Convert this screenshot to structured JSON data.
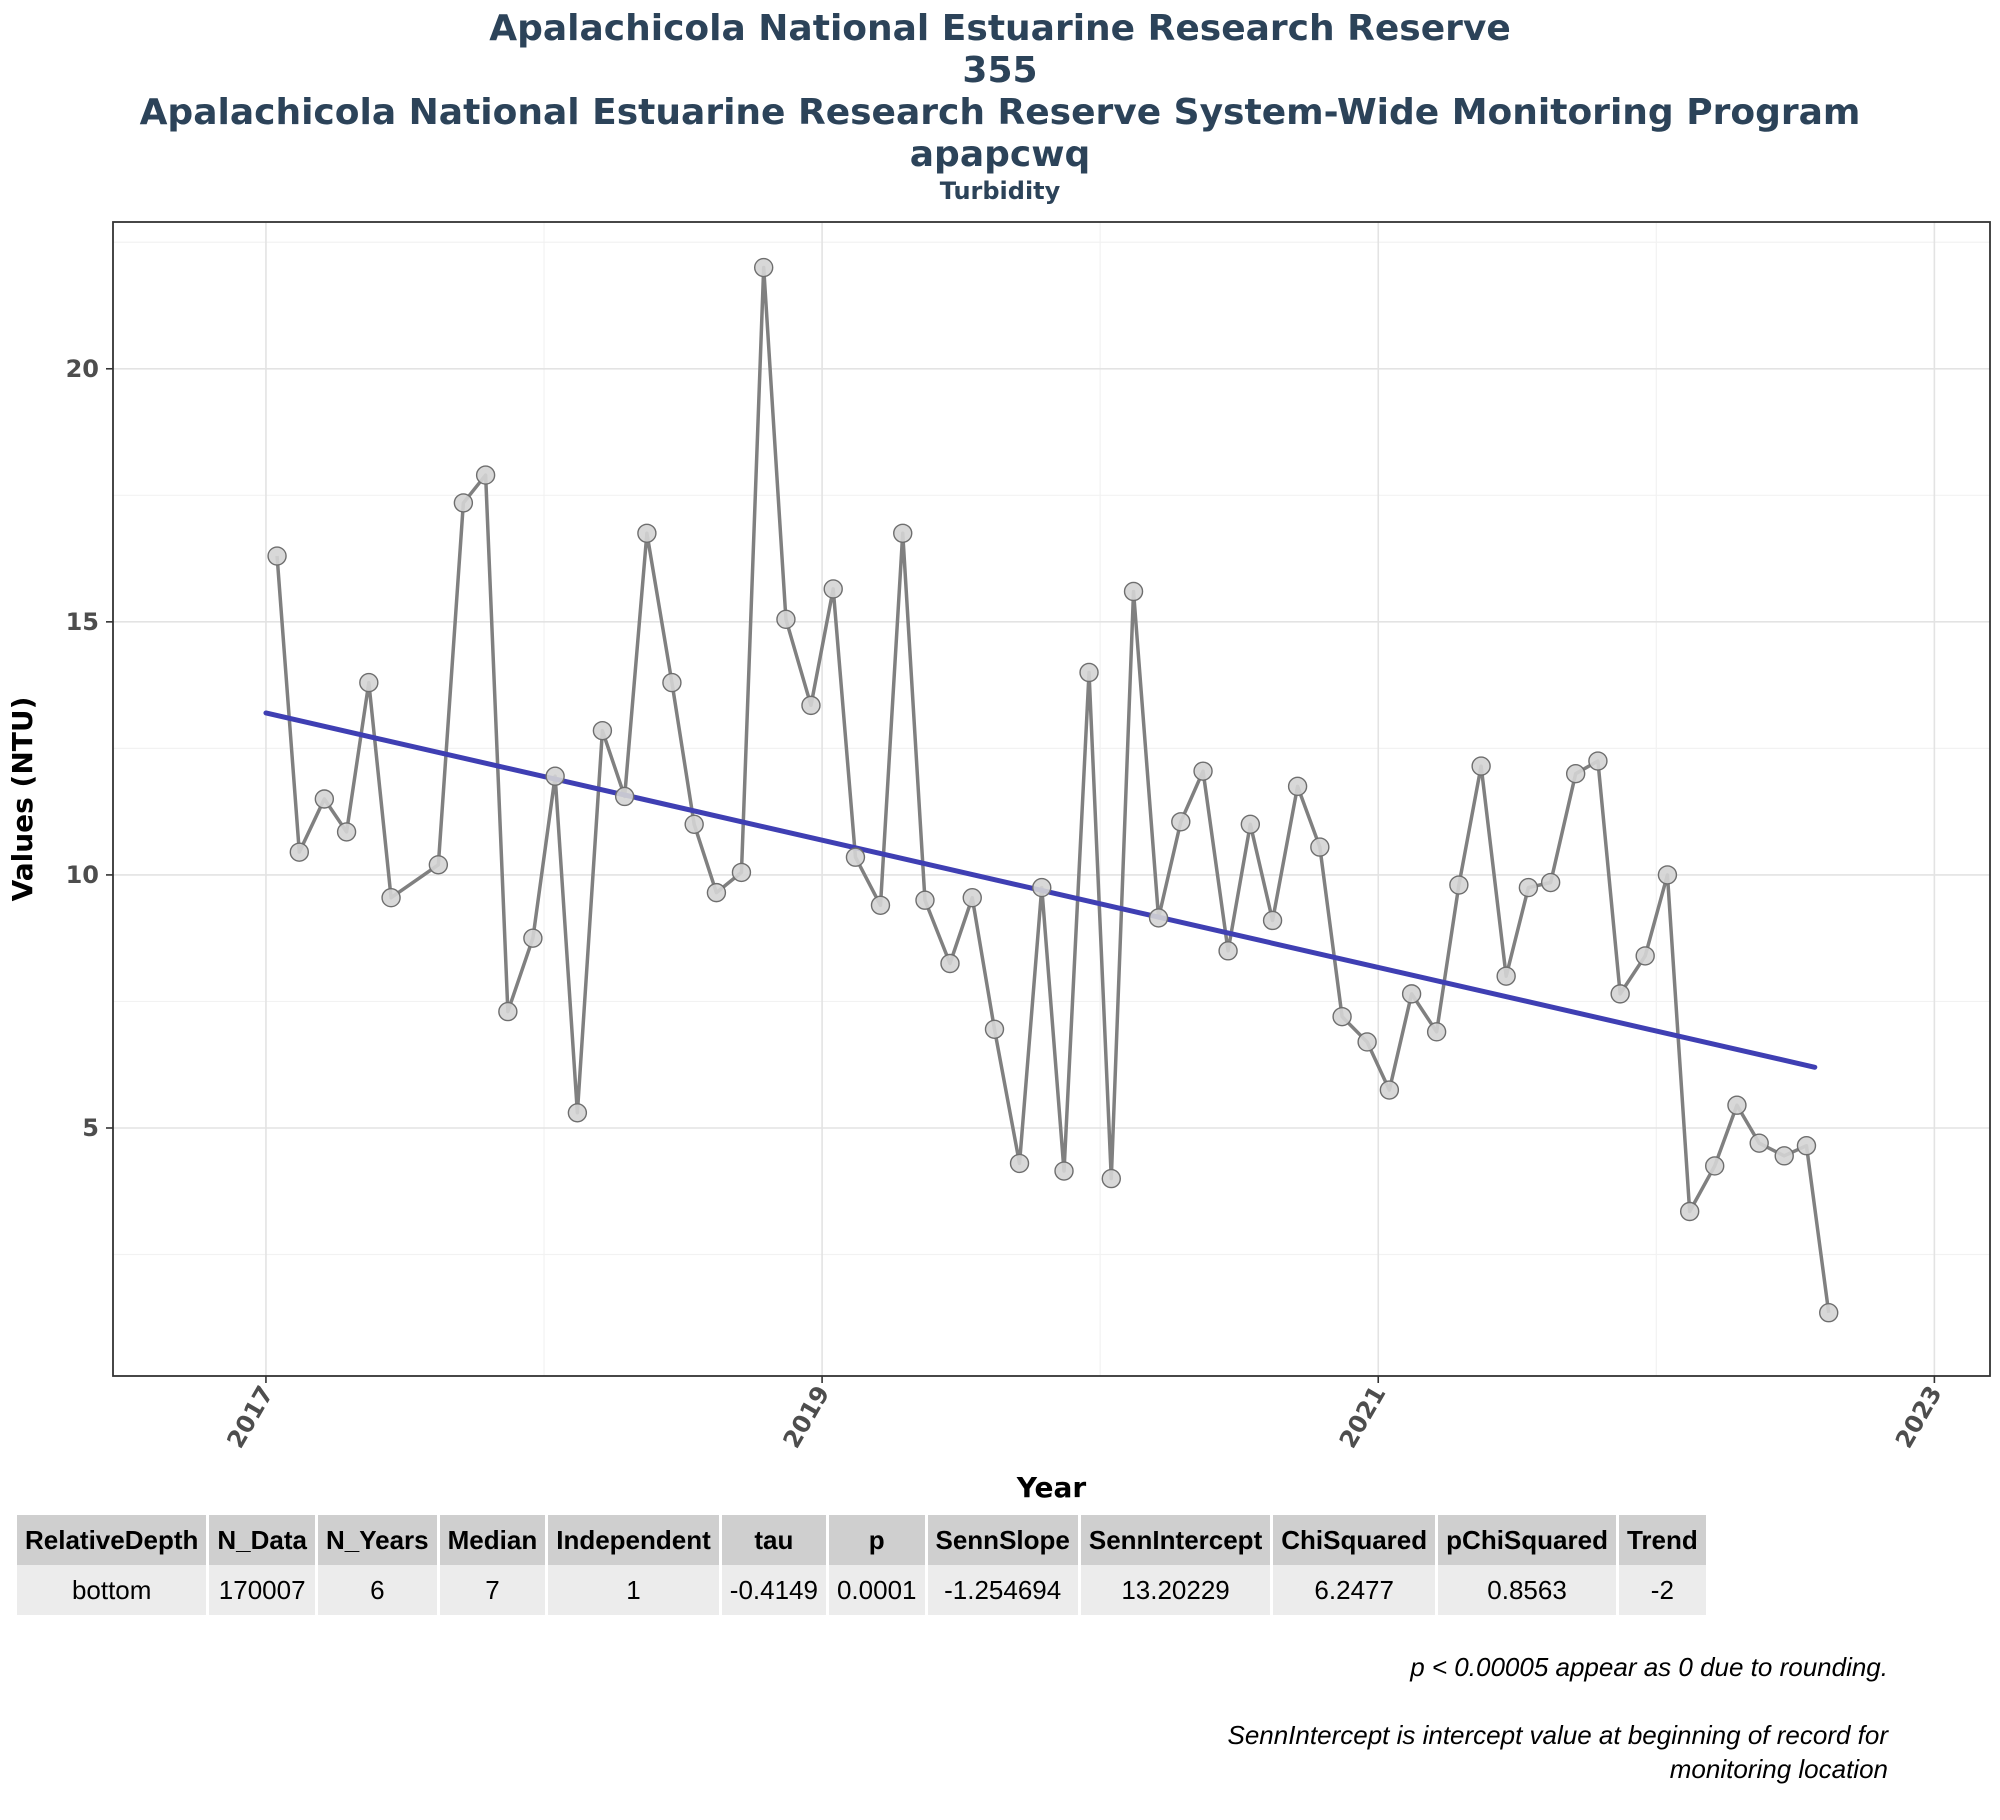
{
  "titles": {
    "line1": "Apalachicola National Estuarine Research Reserve",
    "line2": "355",
    "line3": "Apalachicola National Estuarine Research Reserve System-Wide Monitoring Program",
    "line4": "apapcwq",
    "subtitle": "Turbidity"
  },
  "chart_data": {
    "type": "line",
    "xlabel": "Year",
    "ylabel": "Values (NTU)",
    "xlim": [
      2016.45,
      2023.2
    ],
    "ylim": [
      0.1,
      22.9
    ],
    "x_ticks": [
      "2017",
      "2019",
      "2021",
      "2023"
    ],
    "y_ticks": [
      "5",
      "10",
      "15",
      "20"
    ],
    "grid": true,
    "series": [
      {
        "style": "observed",
        "color": "#808080",
        "points": [
          [
            2017.04,
            16.3
          ],
          [
            2017.12,
            10.45
          ],
          [
            2017.21,
            11.5
          ],
          [
            2017.29,
            10.85
          ],
          [
            2017.37,
            13.8
          ],
          [
            2017.45,
            9.55
          ],
          [
            2017.62,
            10.2
          ],
          [
            2017.71,
            17.35
          ],
          [
            2017.79,
            17.9
          ],
          [
            2017.87,
            7.3
          ],
          [
            2017.96,
            8.75
          ],
          [
            2018.04,
            11.95
          ],
          [
            2018.12,
            5.3
          ],
          [
            2018.21,
            12.85
          ],
          [
            2018.29,
            11.55
          ],
          [
            2018.37,
            16.75
          ],
          [
            2018.46,
            13.8
          ],
          [
            2018.54,
            11.0
          ],
          [
            2018.62,
            9.65
          ],
          [
            2018.71,
            10.05
          ],
          [
            2018.79,
            22.0
          ],
          [
            2018.87,
            15.05
          ],
          [
            2018.96,
            13.35
          ],
          [
            2019.04,
            15.65
          ],
          [
            2019.12,
            10.35
          ],
          [
            2019.21,
            9.4
          ],
          [
            2019.29,
            16.75
          ],
          [
            2019.37,
            9.5
          ],
          [
            2019.46,
            8.25
          ],
          [
            2019.54,
            9.55
          ],
          [
            2019.62,
            6.95
          ],
          [
            2019.71,
            4.3
          ],
          [
            2019.79,
            9.75
          ],
          [
            2019.87,
            4.15
          ],
          [
            2019.96,
            14.0
          ],
          [
            2020.04,
            4.0
          ],
          [
            2020.12,
            15.6
          ],
          [
            2020.21,
            9.15
          ],
          [
            2020.29,
            11.05
          ],
          [
            2020.37,
            12.05
          ],
          [
            2020.46,
            8.5
          ],
          [
            2020.54,
            11.0
          ],
          [
            2020.62,
            9.1
          ],
          [
            2020.71,
            11.75
          ],
          [
            2020.79,
            10.55
          ],
          [
            2020.87,
            7.2
          ],
          [
            2020.96,
            6.7
          ],
          [
            2021.04,
            5.75
          ],
          [
            2021.12,
            7.65
          ],
          [
            2021.21,
            6.9
          ],
          [
            2021.29,
            9.8
          ],
          [
            2021.37,
            12.15
          ],
          [
            2021.46,
            8.0
          ],
          [
            2021.54,
            9.75
          ],
          [
            2021.62,
            9.85
          ],
          [
            2021.71,
            12.0
          ],
          [
            2021.79,
            12.25
          ],
          [
            2021.87,
            7.65
          ],
          [
            2021.96,
            8.4
          ],
          [
            2022.04,
            10.0
          ],
          [
            2022.12,
            3.35
          ],
          [
            2022.21,
            4.25
          ],
          [
            2022.29,
            5.45
          ],
          [
            2022.37,
            4.7
          ],
          [
            2022.46,
            4.45
          ],
          [
            2022.54,
            4.65
          ],
          [
            2022.62,
            1.35
          ]
        ]
      },
      {
        "style": "trend",
        "color": "#3f3fb3",
        "points": [
          [
            2017.0,
            13.2
          ],
          [
            2022.57,
            6.2
          ]
        ]
      }
    ]
  },
  "table": {
    "headers": [
      "RelativeDepth",
      "N_Data",
      "N_Years",
      "Median",
      "Independent",
      "tau",
      "p",
      "SennSlope",
      "SennIntercept",
      "ChiSquared",
      "pChiSquared",
      "Trend"
    ],
    "rows": [
      [
        "bottom",
        "170007",
        "6",
        "7",
        "1",
        "-0.4149",
        "0.0001",
        "-1.254694",
        "13.20229",
        "6.2477",
        "0.8563",
        "-2"
      ]
    ]
  },
  "notes": {
    "note1": "p < 0.00005 appear as 0 due to rounding.",
    "note2": "SennIntercept is intercept value at beginning of record for monitoring location"
  }
}
